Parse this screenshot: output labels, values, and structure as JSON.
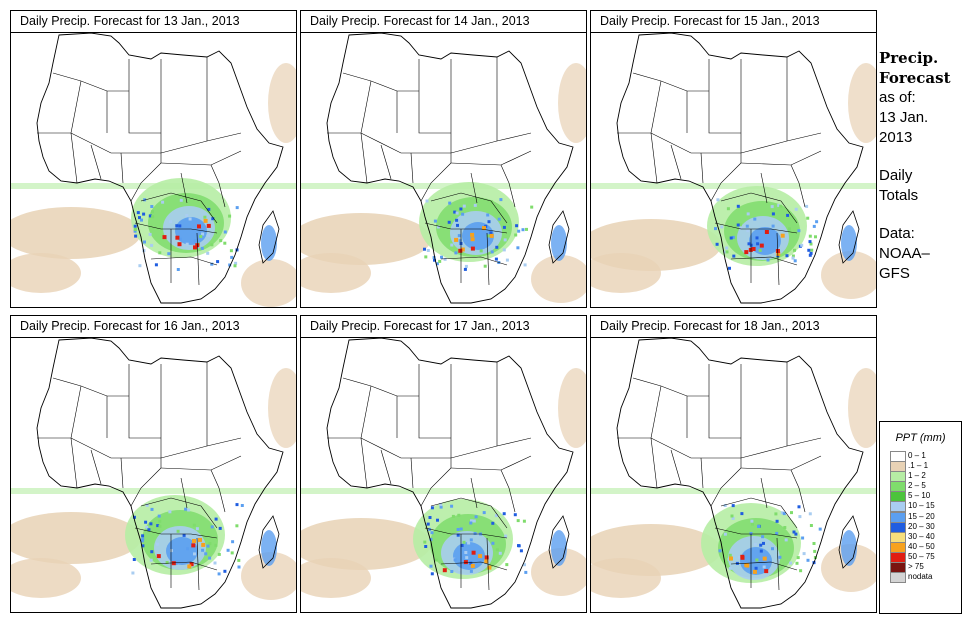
{
  "panels": [
    {
      "title": "Daily Precip. Forecast for  13 Jan., 2013"
    },
    {
      "title": "Daily Precip. Forecast for  14 Jan., 2013"
    },
    {
      "title": "Daily Precip. Forecast for  15 Jan., 2013"
    },
    {
      "title": "Daily Precip. Forecast for  16 Jan., 2013"
    },
    {
      "title": "Daily Precip. Forecast for  17 Jan., 2013"
    },
    {
      "title": "Daily Precip. Forecast for  18 Jan., 2013"
    }
  ],
  "side": {
    "heading_line1": "Precip.",
    "heading_line2": "Forecast",
    "asof_label": "as of:",
    "date_line1": "13 Jan.",
    "date_line2": "2013",
    "totals_line1": "Daily",
    "totals_line2": "Totals",
    "data_label": "Data:",
    "source_line1": "NOAA–",
    "source_line2": "GFS"
  },
  "legend": {
    "title": "PPT (mm)",
    "items": [
      {
        "label": "0 – 1",
        "color": "#ffffff"
      },
      {
        "label": ".1 – 1",
        "color": "#e8d2b5"
      },
      {
        "label": "1 – 2",
        "color": "#b6eda4"
      },
      {
        "label": "2 – 5",
        "color": "#7fdc6c"
      },
      {
        "label": "5 – 10",
        "color": "#4cc43c"
      },
      {
        "label": "10 – 15",
        "color": "#a9cdf1"
      },
      {
        "label": "15 – 20",
        "color": "#5b9ff0"
      },
      {
        "label": "20 – 30",
        "color": "#1f5de0"
      },
      {
        "label": "30 – 40",
        "color": "#f7df7c"
      },
      {
        "label": "40 – 50",
        "color": "#f7a21e"
      },
      {
        "label": "50 – 75",
        "color": "#e01e12"
      },
      {
        "label": "> 75",
        "color": "#7a1410"
      },
      {
        "label": "nodata",
        "color": "#d4d4d4"
      }
    ]
  },
  "colors": {
    "trace": "#e8d2b5",
    "light_green": "#b6eda4",
    "green": "#7fdc6c",
    "light_blue": "#a9cdf1",
    "blue": "#5b9ff0",
    "dark_blue": "#1f5de0",
    "red": "#e01e12",
    "orange": "#f7a21e",
    "border_line": "#000000"
  }
}
